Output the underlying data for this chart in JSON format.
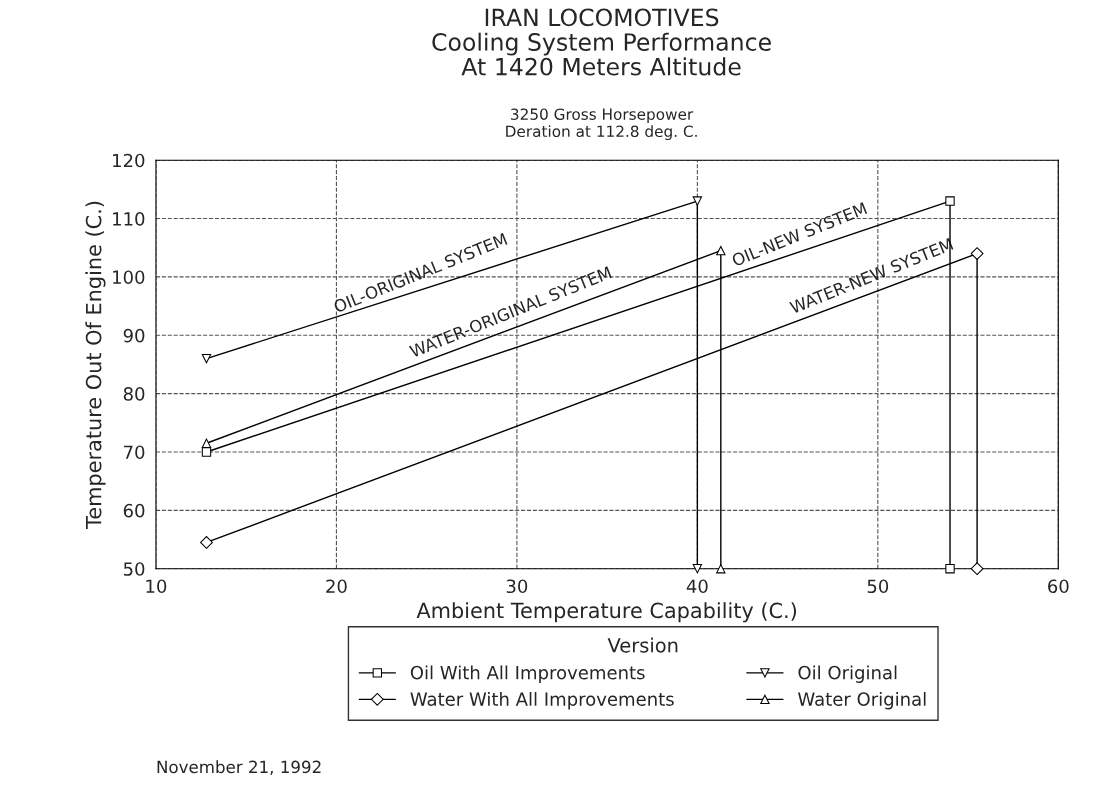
{
  "chart_data": {
    "type": "line",
    "title": "IRAN LOCOMOTIVES\nCooling System Performance\nAt 1420 Meters Altitude",
    "subtitle": "3250 Gross Horsepower\nDeration at 112.8 deg. C.",
    "xlabel": "Ambient Temperature Capability (C.)",
    "ylabel": "Temperature Out Of Engine (C.)",
    "legend_title": "Version",
    "series": [
      {
        "name": "Oil With All Improvements",
        "color": "#000000",
        "marker": "square",
        "x": [
          12.8,
          54,
          54
        ],
        "values": [
          70,
          113,
          50
        ]
      },
      {
        "name": "Water With All Improvements",
        "color": "#000000",
        "marker": "diamond",
        "x": [
          12.8,
          55.5,
          55.5
        ],
        "values": [
          54.5,
          104,
          50
        ]
      },
      {
        "name": "Oil Original",
        "color": "#000000",
        "marker": "triangle_down",
        "x": [
          12.8,
          40,
          40
        ],
        "values": [
          86,
          113,
          50
        ]
      },
      {
        "name": "Water Original",
        "color": "#000000",
        "marker": "triangle",
        "x": [
          12.8,
          41.3,
          41.3
        ],
        "values": [
          71.5,
          104.5,
          50
        ]
      }
    ],
    "annotations": [
      {
        "text": "OIL-ORIGINAL SYSTEM",
        "x": 25,
        "y": 98.1
      },
      {
        "text": "WATER-ORIGINAL SYSTEM",
        "x": 30,
        "y": 91.4
      },
      {
        "text": "OIL-NEW SYSTEM",
        "x": 46,
        "y": 104.7
      },
      {
        "text": "WATER-NEW SYSTEM",
        "x": 50,
        "y": 97.6
      },
      "November 21, 1992"
    ],
    "xlim": [
      10,
      60
    ],
    "xticks": [
      10,
      20,
      30,
      40,
      50,
      60
    ],
    "ylim": [
      50,
      120
    ],
    "yticks": [
      50,
      60,
      70,
      80,
      90,
      100,
      110,
      120
    ],
    "grid": true,
    "legend": "bottom",
    "line_style": "solid"
  }
}
